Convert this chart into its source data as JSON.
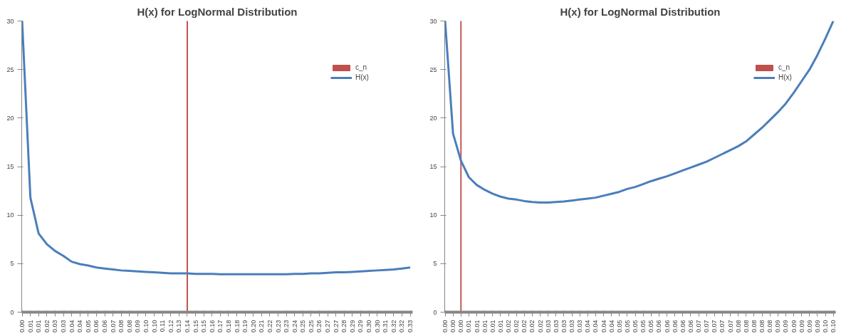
{
  "chart_data": [
    {
      "type": "line",
      "title": "H(x) for LogNormal Distribution",
      "legend": "top right",
      "grid": false,
      "marker": "none",
      "line_style": "solid",
      "ylim": [
        0,
        30
      ],
      "yticks": [
        0,
        5,
        10,
        15,
        20,
        25,
        30
      ],
      "categories": [
        "0.00",
        "0.01",
        "0.01",
        "0.02",
        "0.03",
        "0.03",
        "0.04",
        "0.04",
        "0.05",
        "0.06",
        "0.06",
        "0.07",
        "0.08",
        "0.08",
        "0.09",
        "0.10",
        "0.10",
        "0.11",
        "0.12",
        "0.13",
        "0.14",
        "0.15",
        "0.15",
        "0.16",
        "0.17",
        "0.18",
        "0.18",
        "0.19",
        "0.20",
        "0.21",
        "0.22",
        "0.23",
        "0.23",
        "0.24",
        "0.25",
        "0.25",
        "0.26",
        "0.27",
        "0.27",
        "0.28",
        "0.29",
        "0.29",
        "0.30",
        "0.30",
        "0.31",
        "0.32",
        "0.32",
        "0.33"
      ],
      "series": [
        {
          "name": "c_n",
          "type": "bar",
          "color": "#c0504d",
          "values": [
            null,
            null,
            null,
            null,
            null,
            null,
            null,
            null,
            null,
            null,
            null,
            null,
            null,
            null,
            null,
            null,
            null,
            null,
            null,
            null,
            30,
            null,
            null,
            null,
            null,
            null,
            null,
            null,
            null,
            null,
            null,
            null,
            null,
            null,
            null,
            null,
            null,
            null,
            null,
            null,
            null,
            null,
            null,
            null,
            null,
            null,
            null,
            null
          ]
        },
        {
          "name": "H(x)",
          "color": "#4a7ebb",
          "values": [
            30,
            11.8,
            8.1,
            7.0,
            6.3,
            5.8,
            5.2,
            4.95,
            4.8,
            4.6,
            4.5,
            4.4,
            4.3,
            4.25,
            4.2,
            4.15,
            4.1,
            4.05,
            4.0,
            4.0,
            4.0,
            3.95,
            3.95,
            3.95,
            3.9,
            3.9,
            3.9,
            3.9,
            3.9,
            3.9,
            3.9,
            3.9,
            3.9,
            3.95,
            3.95,
            4.0,
            4.0,
            4.05,
            4.1,
            4.1,
            4.15,
            4.2,
            4.25,
            4.3,
            4.35,
            4.4,
            4.5,
            4.6
          ]
        }
      ]
    },
    {
      "type": "line",
      "title": "H(x) for LogNormal Distribution",
      "legend": "top right",
      "grid": false,
      "marker": "none",
      "line_style": "solid",
      "ylim": [
        0,
        30
      ],
      "yticks": [
        0,
        5,
        10,
        15,
        20,
        25,
        30
      ],
      "categories": [
        "0.00",
        "0.00",
        "0.00",
        "0.01",
        "0.01",
        "0.01",
        "0.01",
        "0.01",
        "0.02",
        "0.02",
        "0.02",
        "0.02",
        "0.02",
        "0.03",
        "0.03",
        "0.03",
        "0.03",
        "0.03",
        "0.04",
        "0.04",
        "0.04",
        "0.04",
        "0.05",
        "0.05",
        "0.05",
        "0.05",
        "0.05",
        "0.06",
        "0.06",
        "0.06",
        "0.06",
        "0.06",
        "0.07",
        "0.07",
        "0.07",
        "0.07",
        "0.07",
        "0.08",
        "0.08",
        "0.08",
        "0.08",
        "0.08",
        "0.09",
        "0.09",
        "0.09",
        "0.09",
        "0.09",
        "0.09",
        "0.10",
        "0.10"
      ],
      "series": [
        {
          "name": "c_n",
          "type": "bar",
          "color": "#c0504d",
          "values": [
            null,
            null,
            30,
            null,
            null,
            null,
            null,
            null,
            null,
            null,
            null,
            null,
            null,
            null,
            null,
            null,
            null,
            null,
            null,
            null,
            null,
            null,
            null,
            null,
            null,
            null,
            null,
            null,
            null,
            null,
            null,
            null,
            null,
            null,
            null,
            null,
            null,
            null,
            null,
            null,
            null,
            null,
            null,
            null,
            null,
            null,
            null,
            null,
            null,
            null
          ]
        },
        {
          "name": "H(x)",
          "color": "#4a7ebb",
          "values": [
            30,
            18.4,
            15.6,
            13.9,
            13.1,
            12.6,
            12.2,
            11.9,
            11.7,
            11.6,
            11.45,
            11.35,
            11.3,
            11.3,
            11.35,
            11.4,
            11.5,
            11.6,
            11.7,
            11.8,
            12.0,
            12.2,
            12.4,
            12.7,
            12.9,
            13.2,
            13.5,
            13.75,
            14.0,
            14.3,
            14.6,
            14.9,
            15.2,
            15.5,
            15.9,
            16.3,
            16.7,
            17.1,
            17.6,
            18.3,
            19.0,
            19.8,
            20.6,
            21.5,
            22.6,
            23.8,
            25.0,
            26.5,
            28.2,
            30.0
          ]
        }
      ]
    }
  ]
}
